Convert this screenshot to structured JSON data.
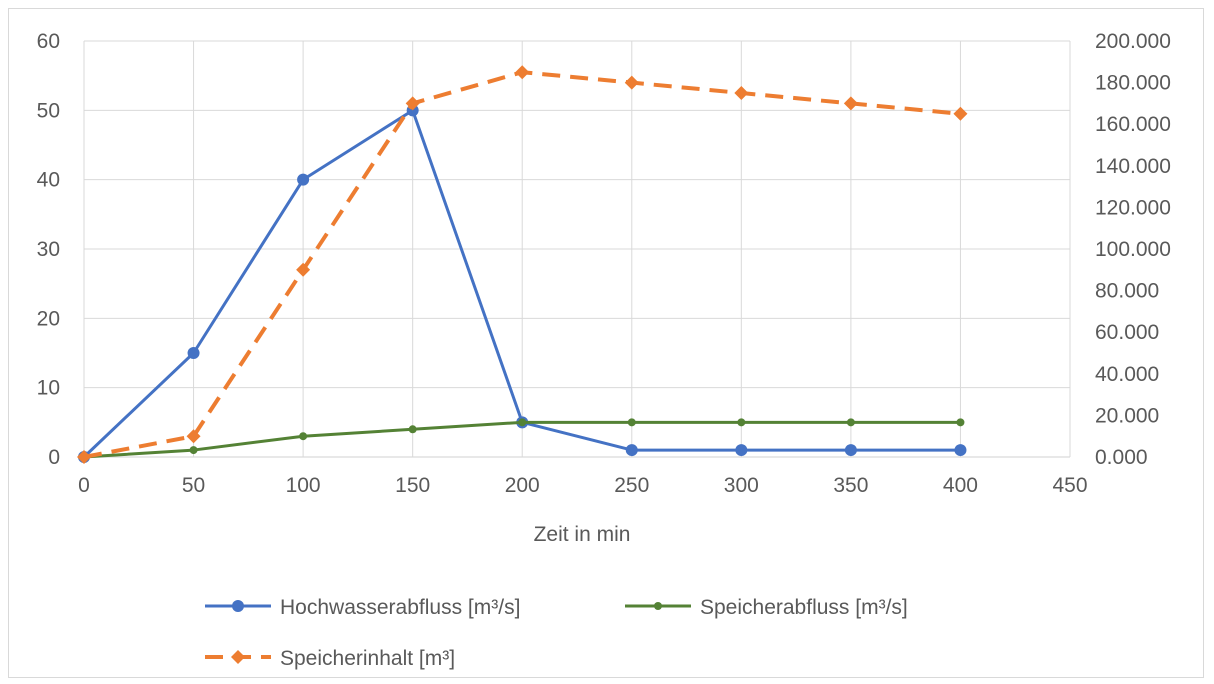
{
  "chart_data": {
    "type": "line",
    "title": "",
    "xlabel": "Zeit in min",
    "ylabel": "",
    "y2label": "",
    "x": [
      0,
      50,
      100,
      150,
      200,
      250,
      300,
      350,
      400
    ],
    "xlim": [
      0,
      450
    ],
    "x_ticks": [
      "0",
      "50",
      "100",
      "150",
      "200",
      "250",
      "300",
      "350",
      "400",
      "450"
    ],
    "ylim": [
      0,
      60
    ],
    "y_ticks": [
      "0",
      "10",
      "20",
      "30",
      "40",
      "50",
      "60"
    ],
    "y2lim": [
      0,
      200000
    ],
    "y2_ticks": [
      "0.000",
      "20.000",
      "40.000",
      "60.000",
      "80.000",
      "100.000",
      "120.000",
      "140.000",
      "160.000",
      "180.000",
      "200.000"
    ],
    "grid": true,
    "legend_position": "bottom",
    "series": [
      {
        "name": "Hochwasserabfluss [m³/s]",
        "axis": "left",
        "color": "#4472c4",
        "dash": "solid",
        "marker": "circle",
        "values": [
          0,
          15,
          40,
          50,
          5,
          1,
          1,
          1,
          1
        ]
      },
      {
        "name": "Speicherabfluss [m³/s]",
        "axis": "left",
        "color": "#548235",
        "dash": "solid",
        "marker": "circle-small",
        "values": [
          0,
          1,
          3,
          4,
          5,
          5,
          5,
          5,
          5
        ]
      },
      {
        "name": "Speicherinhalt [m³]",
        "axis": "right",
        "color": "#ed7d31",
        "dash": "dashed",
        "marker": "diamond",
        "values": [
          0,
          10000,
          90000,
          170000,
          185000,
          180000,
          175000,
          170000,
          165000
        ]
      }
    ]
  }
}
